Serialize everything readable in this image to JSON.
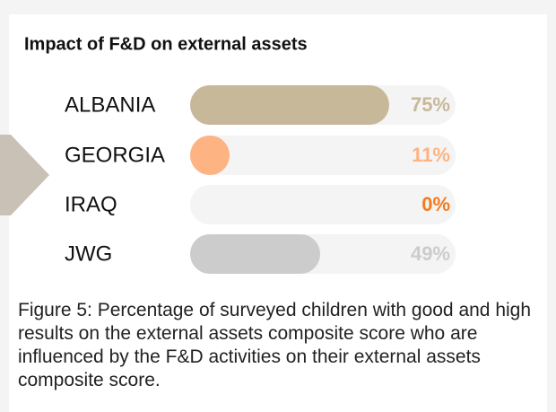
{
  "chart_data": {
    "type": "bar",
    "orientation": "horizontal",
    "title": "Impact of F&D on external assets",
    "categories": [
      "ALBANIA",
      "GEORGIA",
      "IRAQ",
      "JWG"
    ],
    "values": [
      75,
      11,
      0,
      49
    ],
    "value_labels": [
      "75%",
      "11%",
      "0%",
      "49%"
    ],
    "colors": [
      "#c8b89a",
      "#fdb382",
      "#f47a1f",
      "#cccccc"
    ],
    "xlim": [
      0,
      100
    ],
    "caption": "Figure 5: Percentage of surveyed children with good and high results on the external assets composite score who are influenced by the F&D activities on their external assets composite score."
  }
}
